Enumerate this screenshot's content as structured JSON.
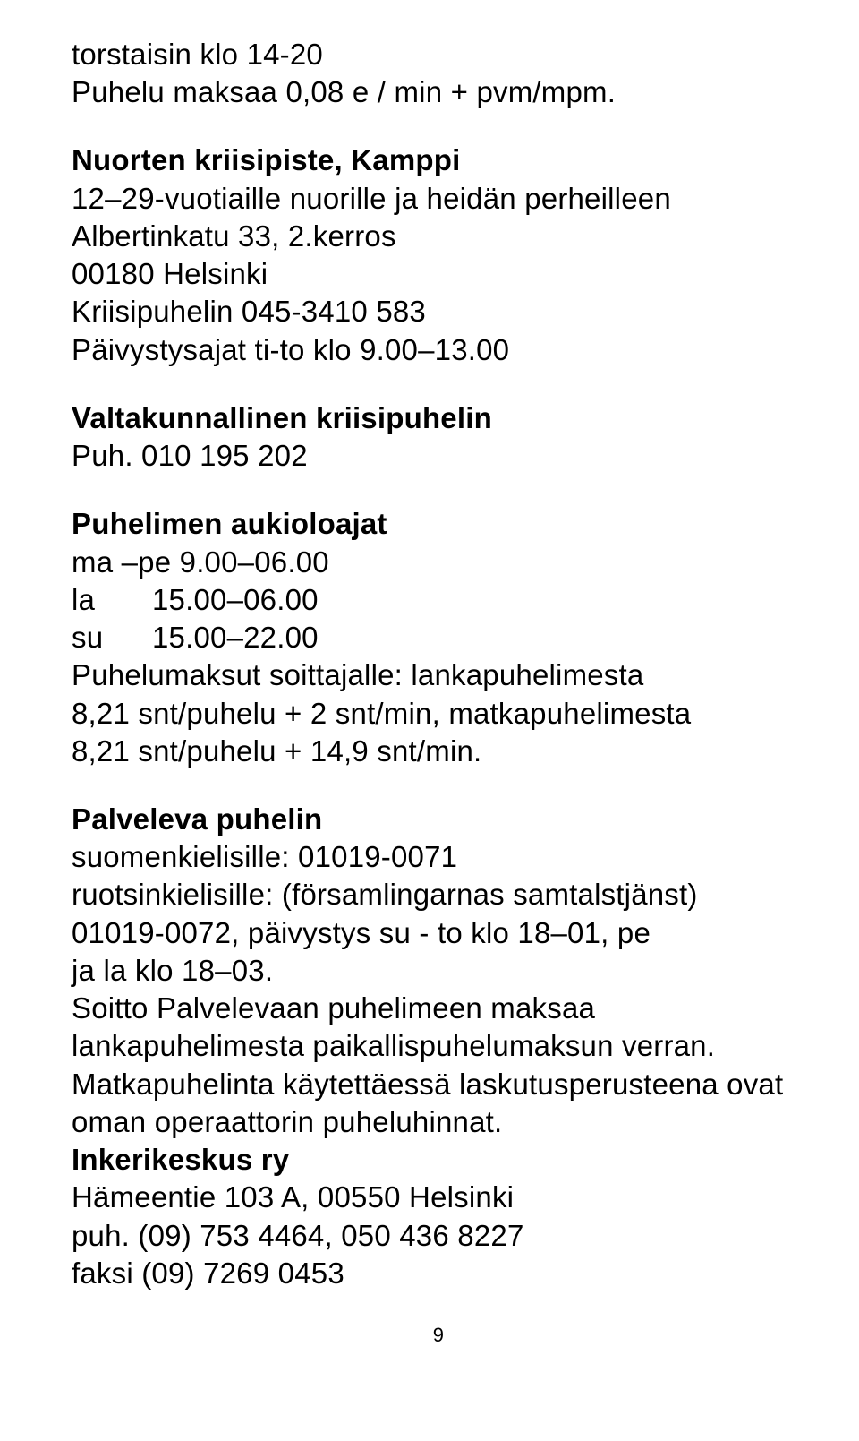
{
  "intro": {
    "line1": "torstaisin klo 14-20",
    "line2": "Puhelu maksaa 0,08 e / min + pvm/mpm."
  },
  "kamppi": {
    "title": "Nuorten kriisipiste, Kamppi",
    "line2": "12–29-vuotiaille nuorille ja heidän perheilleen",
    "line3": "Albertinkatu 33, 2.kerros",
    "line4": "00180 Helsinki",
    "line5": "Kriisipuhelin 045-3410 583",
    "line6": "Päivystysajat ti-to klo 9.00–13.00"
  },
  "national": {
    "title": "Valtakunnallinen kriisipuhelin",
    "line2": "Puh. 010 195 202"
  },
  "hours": {
    "title": "Puhelimen aukioloajat",
    "line_mape": "ma –pe 9.00–06.00",
    "la_label": "la",
    "la_time": "15.00–06.00",
    "su_label": "su",
    "su_time": "15.00–22.00",
    "charges1": "Puhelumaksut soittajalle: lankapuhelimesta",
    "charges2": "8,21 snt/puhelu + 2 snt/min, matkapuhelimesta",
    "charges3": "8,21 snt/puhelu + 14,9 snt/min."
  },
  "palveleva": {
    "title": "Palveleva puhelin",
    "line2": "suomenkielisille: 01019-0071",
    "line3": "ruotsinkielisille: (församlingarnas samtalstjänst)",
    "line4": "01019-0072, päivystys su - to klo 18–01, pe",
    "line5": "ja la klo 18–03.",
    "line6": "Soitto Palvelevaan puhelimeen maksaa",
    "line7": "lankapuhelimesta paikallispuhelumaksun verran.",
    "line8": "Matkapuhelinta käytettäessä laskutusperusteena ovat",
    "line9": "oman operaattorin puheluhinnat."
  },
  "inkeri": {
    "title": "Inkerikeskus ry",
    "line2": "Hämeentie 103 A, 00550 Helsinki",
    "line3": "puh. (09) 753 4464, 050 436 8227",
    "line4": "faksi (09) 7269 0453"
  },
  "page_number": "9"
}
